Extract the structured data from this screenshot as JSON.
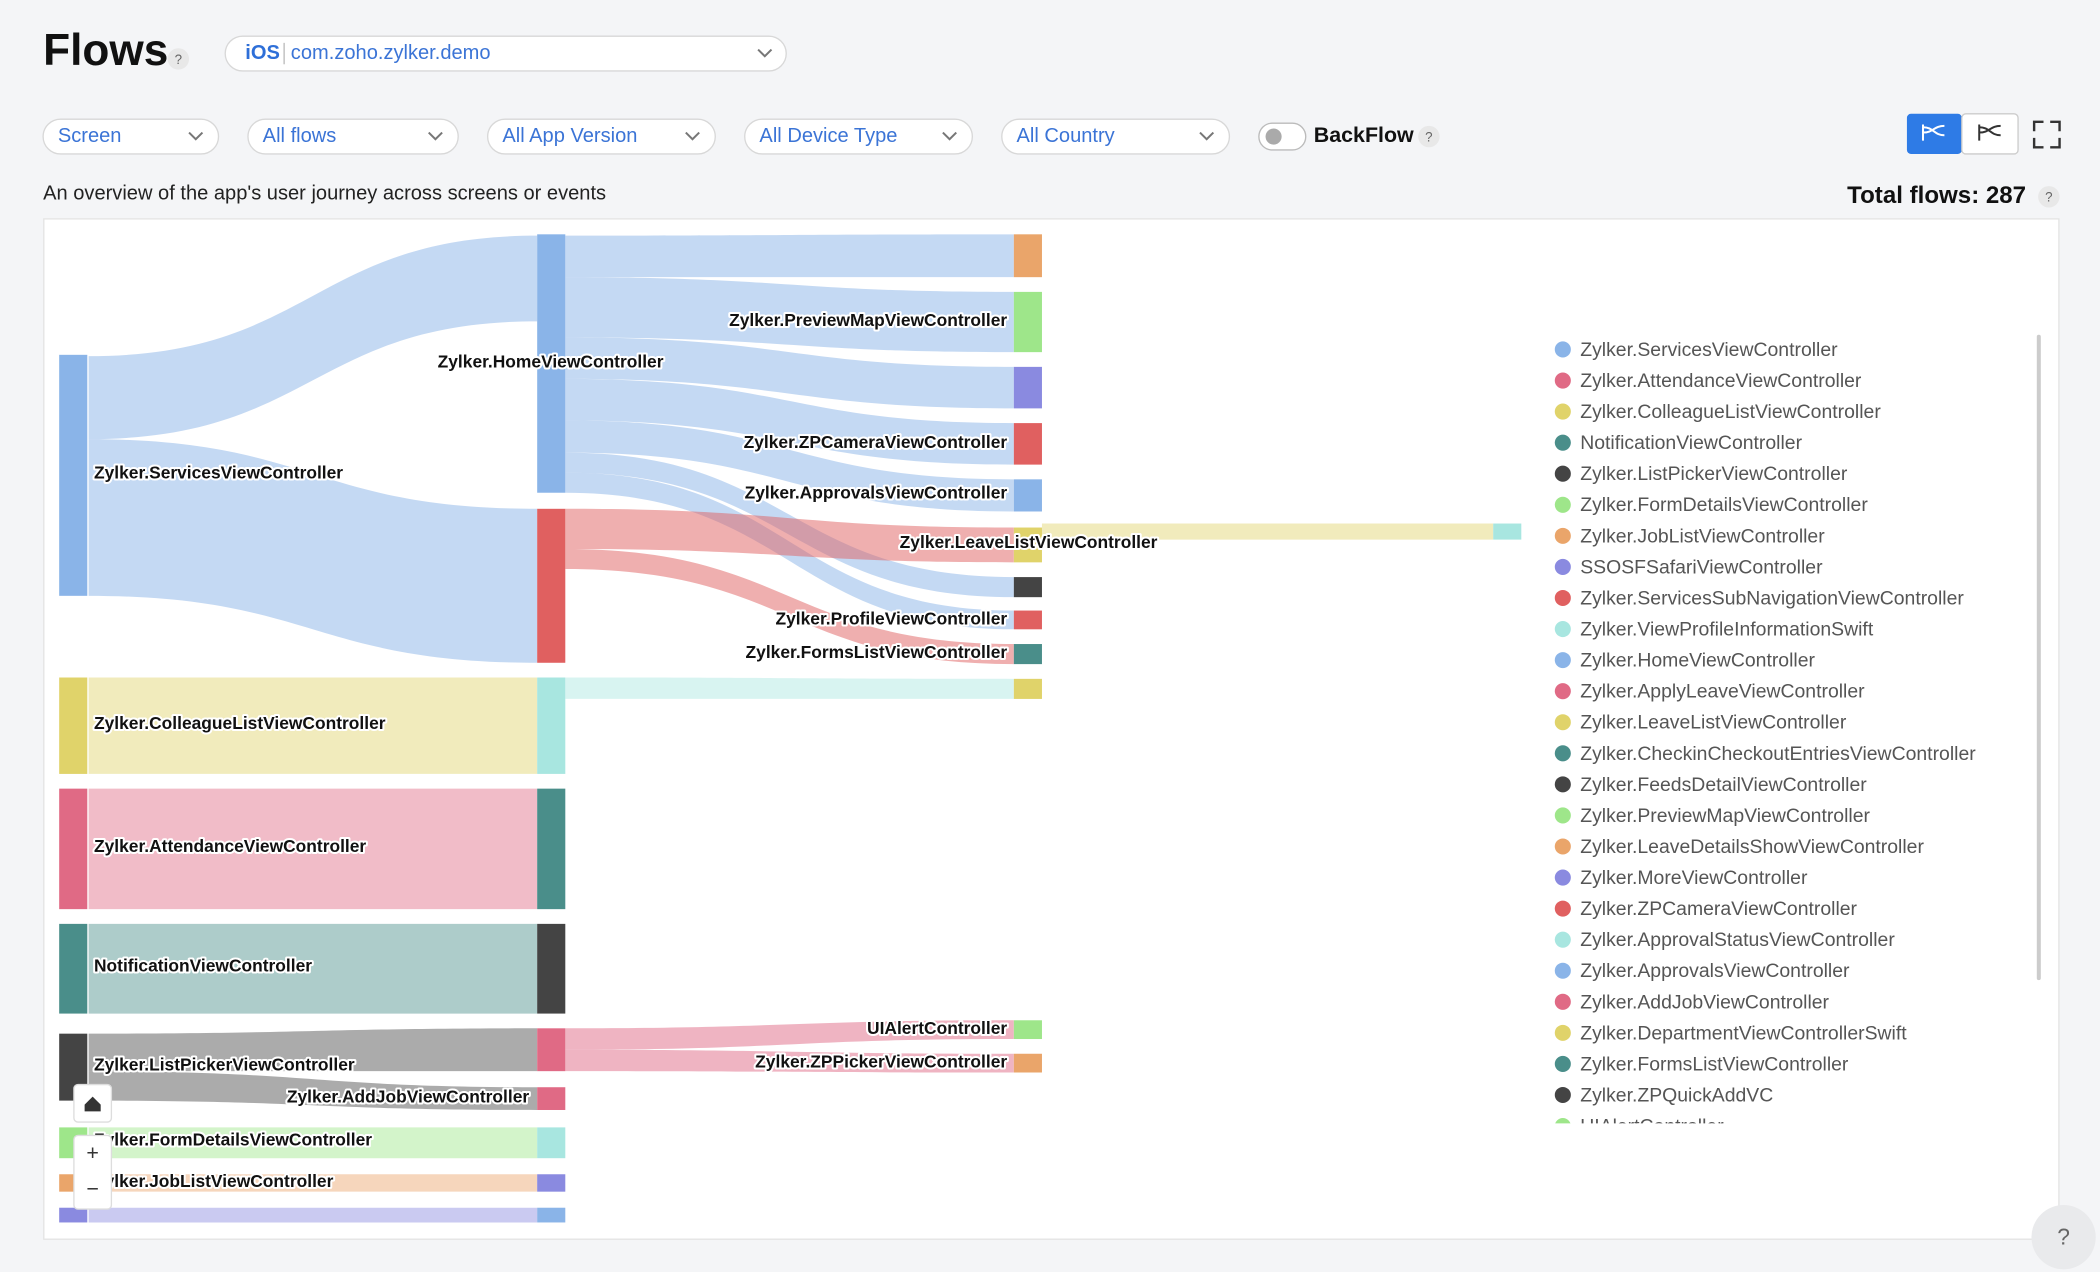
{
  "header": {
    "title": "Flows",
    "platform": "iOS",
    "app": "com.zoho.zylker.demo"
  },
  "help": "?",
  "filters": [
    "Screen",
    "All flows",
    "All App Version",
    "All Device Type",
    "All Country"
  ],
  "backflow": "BackFlow",
  "description": "An overview of the app's user journey across screens or events",
  "total_flows": {
    "label": "Total flows:",
    "value": "287"
  },
  "zoom": {
    "in": "+",
    "out": "−"
  },
  "sankey": {
    "nodes": [
      "Zylker.ServicesViewController",
      "Zylker.ColleagueListViewController",
      "Zylker.AttendanceViewController",
      "NotificationViewController",
      "Zylker.ListPickerViewController",
      "Zylker.FormDetailsViewController",
      "Zylker.JobListViewController",
      "Zylker.HomeViewController",
      "Zylker.AddJobViewController",
      "Zylker.PreviewMapViewController",
      "Zylker.ZPCameraViewController",
      "Zylker.ApprovalsViewController",
      "Zylker.LeaveListViewController",
      "Zylker.ProfileViewController",
      "Zylker.FormsListViewController",
      "UIAlertController",
      "Zylker.ZPPickerViewController"
    ]
  },
  "legend": [
    {
      "name": "Zylker.ServicesViewController",
      "color": "#8ab4e8"
    },
    {
      "name": "Zylker.AttendanceViewController",
      "color": "#e06a85"
    },
    {
      "name": "Zylker.ColleagueListViewController",
      "color": "#e0d36a"
    },
    {
      "name": "NotificationViewController",
      "color": "#4a8e8a"
    },
    {
      "name": "Zylker.ListPickerViewController",
      "color": "#444444"
    },
    {
      "name": "Zylker.FormDetailsViewController",
      "color": "#9ee68a"
    },
    {
      "name": "Zylker.JobListViewController",
      "color": "#eaa56a"
    },
    {
      "name": "SSOSFSafariViewController",
      "color": "#8a8ae0"
    },
    {
      "name": "Zylker.ServicesSubNavigationViewController",
      "color": "#e06060"
    },
    {
      "name": "Zylker.ViewProfileInformationSwift",
      "color": "#a8e6e0"
    },
    {
      "name": "Zylker.HomeViewController",
      "color": "#8ab4e8"
    },
    {
      "name": "Zylker.ApplyLeaveViewController",
      "color": "#e06a85"
    },
    {
      "name": "Zylker.LeaveListViewController",
      "color": "#e0d36a"
    },
    {
      "name": "Zylker.CheckinCheckoutEntriesViewController",
      "color": "#4a8e8a"
    },
    {
      "name": "Zylker.FeedsDetailViewController",
      "color": "#444444"
    },
    {
      "name": "Zylker.PreviewMapViewController",
      "color": "#9ee68a"
    },
    {
      "name": "Zylker.LeaveDetailsShowViewController",
      "color": "#eaa56a"
    },
    {
      "name": "Zylker.MoreViewController",
      "color": "#8a8ae0"
    },
    {
      "name": "Zylker.ZPCameraViewController",
      "color": "#e06060"
    },
    {
      "name": "Zylker.ApprovalStatusViewController",
      "color": "#a8e6e0"
    },
    {
      "name": "Zylker.ApprovalsViewController",
      "color": "#8ab4e8"
    },
    {
      "name": "Zylker.AddJobViewController",
      "color": "#e06a85"
    },
    {
      "name": "Zylker.DepartmentViewControllerSwift",
      "color": "#e0d36a"
    },
    {
      "name": "Zylker.FormsListViewController",
      "color": "#4a8e8a"
    },
    {
      "name": "Zylker.ZPQuickAddVC",
      "color": "#444444"
    },
    {
      "name": "UIAlertController",
      "color": "#9ee68a"
    }
  ]
}
